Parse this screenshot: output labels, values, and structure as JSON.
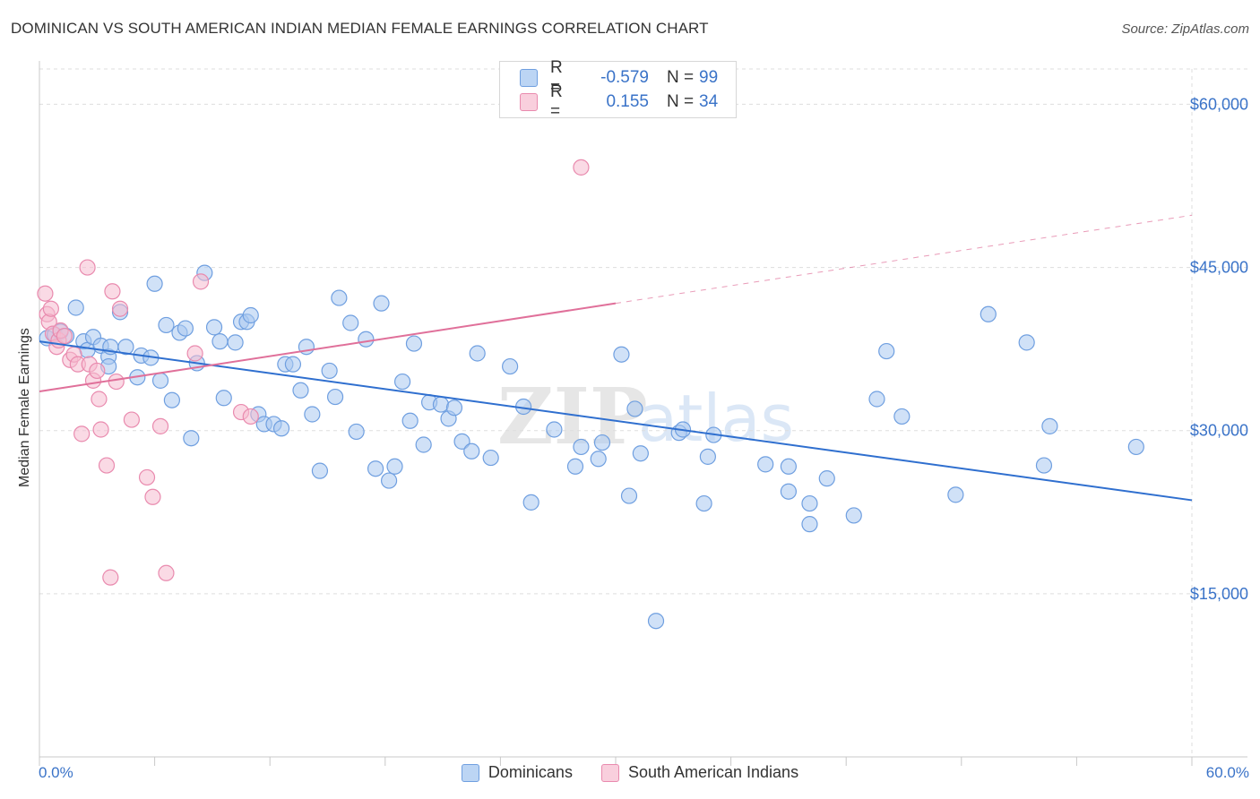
{
  "header": {
    "title": "DOMINICAN VS SOUTH AMERICAN INDIAN MEDIAN FEMALE EARNINGS CORRELATION CHART",
    "source": "Source: ZipAtlas.com"
  },
  "legend": {
    "rows": [
      {
        "r_label": "R =",
        "r_value": "-0.579",
        "n_label": "N =",
        "n_value": "99"
      },
      {
        "r_label": "R =",
        "r_value": "0.155",
        "n_label": "N =",
        "n_value": "34"
      }
    ]
  },
  "watermark": {
    "zip": "ZIP",
    "atlas": "atlas"
  },
  "colors": {
    "blue_fill": "#a9c8f0",
    "blue_stroke": "#6f9fe0",
    "blue_line": "#2f6fcf",
    "pink_fill": "#f6bcd0",
    "pink_stroke": "#e98aae",
    "pink_line": "#e0709a",
    "axis_text": "#3a73c8",
    "grid": "#dddddd"
  },
  "chart_data": {
    "type": "scatter",
    "title": "DOMINICAN VS SOUTH AMERICAN INDIAN MEDIAN FEMALE EARNINGS CORRELATION CHART",
    "xlabel": "",
    "ylabel": "Median Female Earnings",
    "xlim": [
      0,
      60
    ],
    "ylim": [
      0,
      63000
    ],
    "x_tick_labels": [
      "0.0%",
      "60.0%"
    ],
    "y_ticks": [
      15000,
      30000,
      45000,
      60000
    ],
    "y_tick_labels": [
      "$15,000",
      "$30,000",
      "$45,000",
      "$60,000"
    ],
    "grid": true,
    "legend_position": "top-center",
    "series": [
      {
        "name": "Dominicans",
        "color": "#a9c8f0",
        "r": -0.579,
        "n": 99,
        "trend": {
          "x": [
            0,
            60
          ],
          "y": [
            38200,
            23600
          ],
          "style": "solid"
        },
        "points": [
          [
            0.4,
            38500
          ],
          [
            0.8,
            38800
          ],
          [
            1.1,
            39100
          ],
          [
            1.4,
            38700
          ],
          [
            1.9,
            41300
          ],
          [
            2.3,
            38200
          ],
          [
            2.5,
            37400
          ],
          [
            2.8,
            38600
          ],
          [
            3.2,
            37800
          ],
          [
            3.6,
            36800
          ],
          [
            3.7,
            37700
          ],
          [
            3.6,
            35900
          ],
          [
            4.2,
            40900
          ],
          [
            4.5,
            37700
          ],
          [
            5.1,
            34900
          ],
          [
            5.3,
            36900
          ],
          [
            5.8,
            36700
          ],
          [
            6.0,
            43500
          ],
          [
            6.3,
            34600
          ],
          [
            6.6,
            39700
          ],
          [
            6.9,
            32800
          ],
          [
            7.3,
            39000
          ],
          [
            7.6,
            39400
          ],
          [
            7.9,
            29300
          ],
          [
            8.2,
            36200
          ],
          [
            8.6,
            44500
          ],
          [
            9.1,
            39500
          ],
          [
            9.4,
            38200
          ],
          [
            9.6,
            33000
          ],
          [
            10.2,
            38100
          ],
          [
            10.5,
            40000
          ],
          [
            10.8,
            40000
          ],
          [
            11.0,
            40600
          ],
          [
            11.4,
            31500
          ],
          [
            11.7,
            30600
          ],
          [
            12.2,
            30600
          ],
          [
            12.6,
            30200
          ],
          [
            12.8,
            36100
          ],
          [
            13.2,
            36100
          ],
          [
            13.6,
            33700
          ],
          [
            13.9,
            37700
          ],
          [
            14.2,
            31500
          ],
          [
            14.6,
            26300
          ],
          [
            15.1,
            35500
          ],
          [
            15.4,
            33100
          ],
          [
            15.6,
            42200
          ],
          [
            16.2,
            39900
          ],
          [
            16.5,
            29900
          ],
          [
            17.0,
            38400
          ],
          [
            17.5,
            26500
          ],
          [
            17.8,
            41700
          ],
          [
            18.2,
            25400
          ],
          [
            18.5,
            26700
          ],
          [
            18.9,
            34500
          ],
          [
            19.3,
            30900
          ],
          [
            19.5,
            38000
          ],
          [
            20.0,
            28700
          ],
          [
            20.3,
            32600
          ],
          [
            20.9,
            32400
          ],
          [
            21.3,
            31100
          ],
          [
            21.6,
            32100
          ],
          [
            22.0,
            29000
          ],
          [
            22.5,
            28100
          ],
          [
            22.8,
            37100
          ],
          [
            23.5,
            27500
          ],
          [
            24.5,
            35900
          ],
          [
            25.2,
            32200
          ],
          [
            25.6,
            23400
          ],
          [
            26.8,
            30100
          ],
          [
            27.9,
            26700
          ],
          [
            28.2,
            28500
          ],
          [
            29.1,
            27400
          ],
          [
            29.3,
            28900
          ],
          [
            30.3,
            37000
          ],
          [
            30.7,
            24000
          ],
          [
            31.0,
            32000
          ],
          [
            31.3,
            27900
          ],
          [
            32.1,
            12500
          ],
          [
            33.3,
            29800
          ],
          [
            33.5,
            30100
          ],
          [
            34.6,
            23300
          ],
          [
            34.8,
            27600
          ],
          [
            35.1,
            29600
          ],
          [
            37.8,
            26900
          ],
          [
            39.0,
            26700
          ],
          [
            39.0,
            24400
          ],
          [
            40.1,
            23300
          ],
          [
            40.1,
            21400
          ],
          [
            41.0,
            25600
          ],
          [
            42.4,
            22200
          ],
          [
            43.6,
            32900
          ],
          [
            44.1,
            37300
          ],
          [
            44.9,
            31300
          ],
          [
            47.7,
            24100
          ],
          [
            49.4,
            40700
          ],
          [
            51.4,
            38100
          ],
          [
            52.3,
            26800
          ],
          [
            52.6,
            30400
          ],
          [
            57.1,
            28500
          ]
        ]
      },
      {
        "name": "South American Indians",
        "color": "#f6bcd0",
        "r": 0.155,
        "n": 34,
        "trend": {
          "x": [
            0,
            30
          ],
          "y": [
            33600,
            41700
          ],
          "style": "solid",
          "extended_to": [
            60,
            49800
          ],
          "extended_style": "dashed"
        },
        "points": [
          [
            0.3,
            42600
          ],
          [
            0.4,
            40700
          ],
          [
            0.5,
            40000
          ],
          [
            0.6,
            41200
          ],
          [
            0.7,
            38900
          ],
          [
            0.9,
            37700
          ],
          [
            1.0,
            38300
          ],
          [
            1.1,
            39200
          ],
          [
            1.3,
            38700
          ],
          [
            1.6,
            36500
          ],
          [
            1.8,
            37000
          ],
          [
            2.0,
            36100
          ],
          [
            2.2,
            29700
          ],
          [
            2.5,
            45000
          ],
          [
            2.6,
            36100
          ],
          [
            2.8,
            34600
          ],
          [
            3.0,
            35500
          ],
          [
            3.1,
            32900
          ],
          [
            3.2,
            30100
          ],
          [
            3.5,
            26800
          ],
          [
            3.7,
            16500
          ],
          [
            3.8,
            42800
          ],
          [
            4.0,
            34500
          ],
          [
            4.2,
            41200
          ],
          [
            4.8,
            31000
          ],
          [
            5.6,
            25700
          ],
          [
            5.9,
            23900
          ],
          [
            6.3,
            30400
          ],
          [
            6.6,
            16900
          ],
          [
            8.1,
            37100
          ],
          [
            8.4,
            43700
          ],
          [
            10.5,
            31700
          ],
          [
            11.0,
            31300
          ],
          [
            28.2,
            54200
          ]
        ]
      }
    ]
  }
}
